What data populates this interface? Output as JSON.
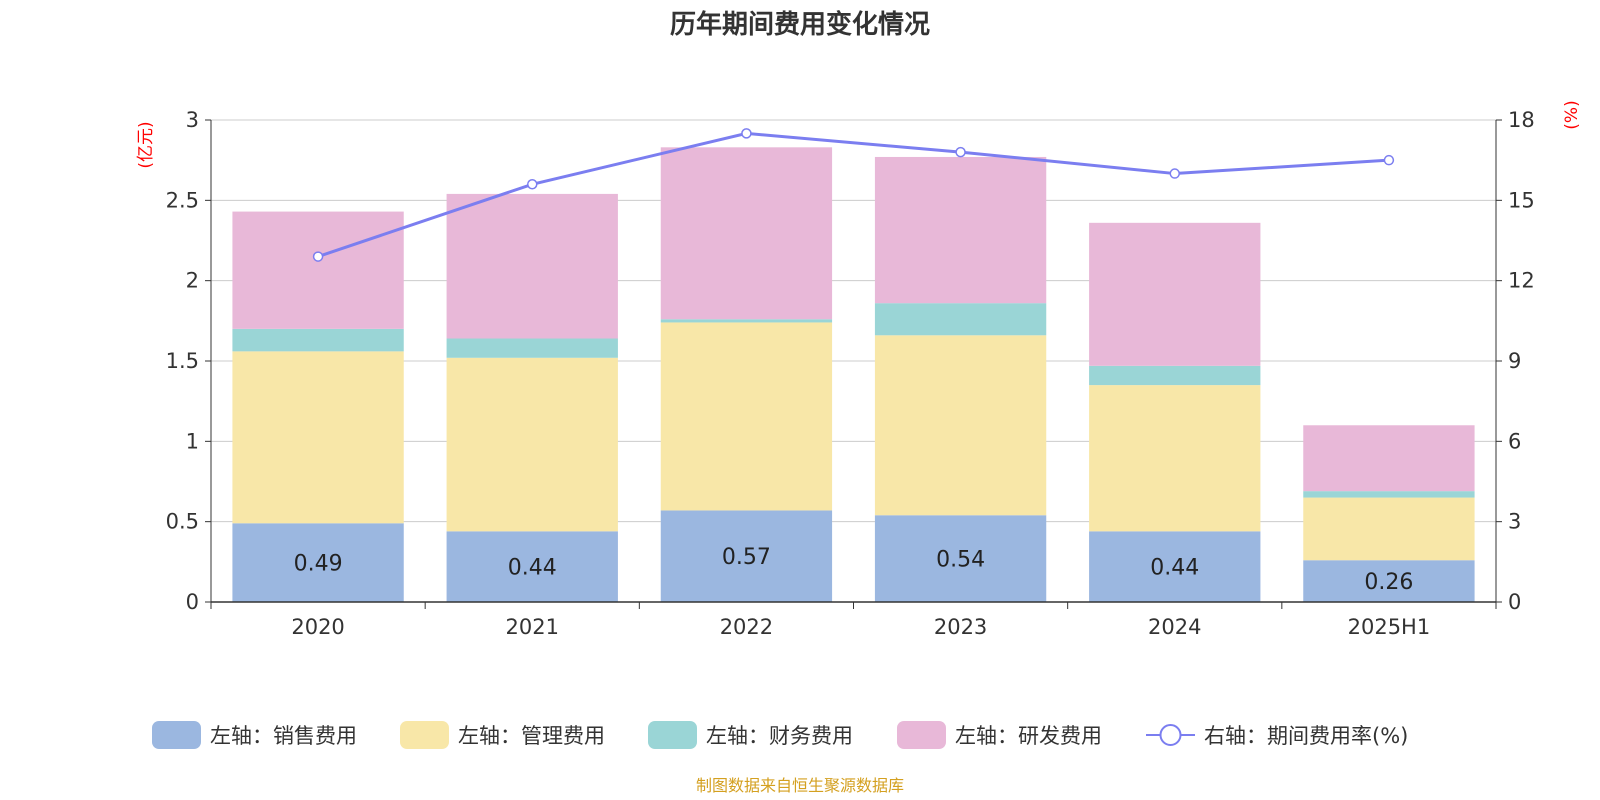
{
  "chart_data": {
    "type": "bar",
    "title": "历年期间费用变化情况",
    "left_unit": "(亿元)",
    "right_unit": "(%)",
    "categories": [
      "2020",
      "2021",
      "2022",
      "2023",
      "2024",
      "2025H1"
    ],
    "left_axis": {
      "ylim": [
        0,
        3
      ],
      "ticks": [
        "0",
        "0.5",
        "1",
        "1.5",
        "2",
        "2.5",
        "3"
      ]
    },
    "right_axis": {
      "ylim": [
        0,
        18
      ],
      "ticks": [
        "0",
        "3",
        "6",
        "9",
        "12",
        "15",
        "18"
      ]
    },
    "grid": true,
    "legend_position": "bottom",
    "series": [
      {
        "name": "左轴：销售费用",
        "type": "bar",
        "stack": "left",
        "color": "#9bb7e0",
        "values": [
          0.49,
          0.44,
          0.57,
          0.54,
          0.44,
          0.26
        ],
        "show_labels": true
      },
      {
        "name": "左轴：管理费用",
        "type": "bar",
        "stack": "left",
        "color": "#f8e7a8",
        "values": [
          1.07,
          1.08,
          1.17,
          1.12,
          0.91,
          0.39
        ]
      },
      {
        "name": "左轴：财务费用",
        "type": "bar",
        "stack": "left",
        "color": "#9ad5d6",
        "values": [
          0.14,
          0.12,
          0.02,
          0.2,
          0.12,
          0.04
        ]
      },
      {
        "name": "左轴：研发费用",
        "type": "bar",
        "stack": "left",
        "color": "#e8b8d8",
        "values": [
          0.73,
          0.9,
          1.07,
          0.91,
          0.89,
          0.41
        ]
      },
      {
        "name": "右轴：期间费用率(%)",
        "type": "line",
        "axis": "right",
        "color": "#7b7ef0",
        "values": [
          12.9,
          15.6,
          17.5,
          16.8,
          16.0,
          16.5
        ]
      }
    ],
    "source": "制图数据来自恒生聚源数据库"
  }
}
